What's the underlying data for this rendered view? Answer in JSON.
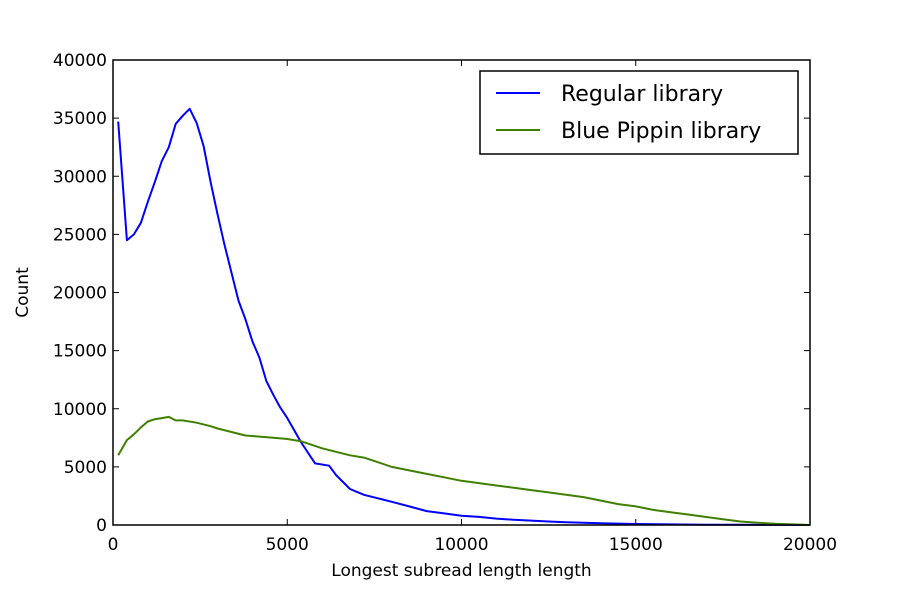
{
  "chart_data": {
    "type": "line",
    "title": "",
    "xlabel": "Longest subread length length",
    "ylabel": "Count",
    "xlim": [
      0,
      20000
    ],
    "ylim": [
      0,
      40000
    ],
    "xticks": [
      0,
      5000,
      10000,
      15000,
      20000
    ],
    "yticks": [
      0,
      5000,
      10000,
      15000,
      20000,
      25000,
      30000,
      35000,
      40000
    ],
    "grid": false,
    "legend_position": "top-right",
    "series": [
      {
        "name": "Regular library",
        "color": "#0000ff",
        "x": [
          150,
          400,
          600,
          800,
          1000,
          1200,
          1400,
          1600,
          1800,
          2000,
          2200,
          2400,
          2600,
          2800,
          3000,
          3200,
          3400,
          3600,
          3800,
          4000,
          4200,
          4400,
          4600,
          4800,
          5000,
          5400,
          5800,
          6200,
          6400,
          6600,
          6800,
          7200,
          7600,
          8000,
          8500,
          9000,
          9500,
          10000,
          10500,
          11000,
          11500,
          12000,
          12500,
          13000,
          14000,
          15000,
          16000,
          17000,
          18000,
          19000,
          20000
        ],
        "y": [
          34700,
          24500,
          25000,
          26000,
          27800,
          29500,
          31300,
          32500,
          34500,
          35200,
          35800,
          34600,
          32600,
          29500,
          26700,
          24100,
          21700,
          19300,
          17700,
          15800,
          14400,
          12400,
          11200,
          10100,
          9200,
          7100,
          5300,
          5100,
          4300,
          3700,
          3100,
          2600,
          2300,
          2000,
          1600,
          1200,
          1000,
          800,
          700,
          550,
          450,
          380,
          300,
          240,
          150,
          90,
          50,
          30,
          15,
          5,
          0
        ]
      },
      {
        "name": "Blue Pippin library",
        "color": "#408000",
        "x": [
          150,
          400,
          600,
          800,
          1000,
          1200,
          1400,
          1600,
          1800,
          2000,
          2400,
          2800,
          3000,
          3400,
          3800,
          4200,
          4600,
          5000,
          5400,
          5800,
          6000,
          6400,
          6800,
          7200,
          7600,
          8000,
          8500,
          9000,
          9500,
          10000,
          10500,
          11000,
          11500,
          12000,
          12500,
          13000,
          13500,
          14000,
          14500,
          15000,
          15500,
          16000,
          16500,
          17000,
          17500,
          18000,
          18500,
          19000,
          19500,
          20000
        ],
        "y": [
          6000,
          7300,
          7800,
          8400,
          8900,
          9100,
          9200,
          9300,
          9000,
          9000,
          8800,
          8500,
          8300,
          8000,
          7700,
          7600,
          7500,
          7400,
          7200,
          6800,
          6600,
          6300,
          6000,
          5800,
          5400,
          5000,
          4700,
          4400,
          4100,
          3800,
          3600,
          3400,
          3200,
          3000,
          2800,
          2600,
          2400,
          2100,
          1800,
          1600,
          1300,
          1100,
          900,
          700,
          500,
          300,
          200,
          100,
          50,
          0
        ]
      }
    ]
  }
}
